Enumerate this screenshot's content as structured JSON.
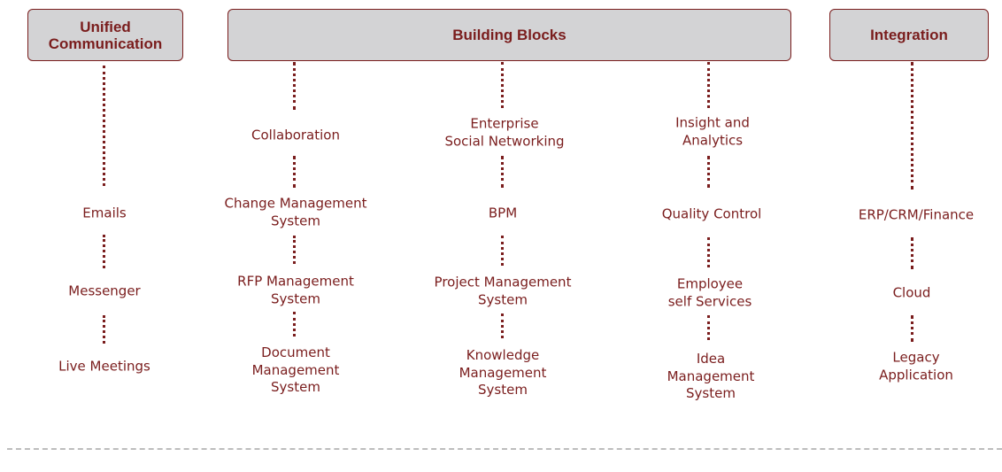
{
  "headers": {
    "unified": "Unified\nCommunication",
    "building": "Building Blocks",
    "integration": "Integration"
  },
  "columns": {
    "unified": {
      "items": [
        "Emails",
        "Messenger",
        "Live Meetings"
      ]
    },
    "collaboration": {
      "items": [
        "Collaboration",
        "Change Management\nSystem",
        "RFP Management\nSystem",
        "Document\nManagement\nSystem"
      ]
    },
    "social": {
      "items": [
        "Enterprise\nSocial Networking",
        "BPM",
        "Project Management\nSystem",
        "Knowledge\nManagement\nSystem"
      ]
    },
    "insight": {
      "items": [
        "Insight and\nAnalytics",
        "Quality Control",
        "Employee\nself Services",
        "Idea\nManagement\nSystem"
      ]
    },
    "integration": {
      "items": [
        "ERP/CRM/Finance",
        "Cloud",
        "Legacy\nApplication"
      ]
    }
  }
}
